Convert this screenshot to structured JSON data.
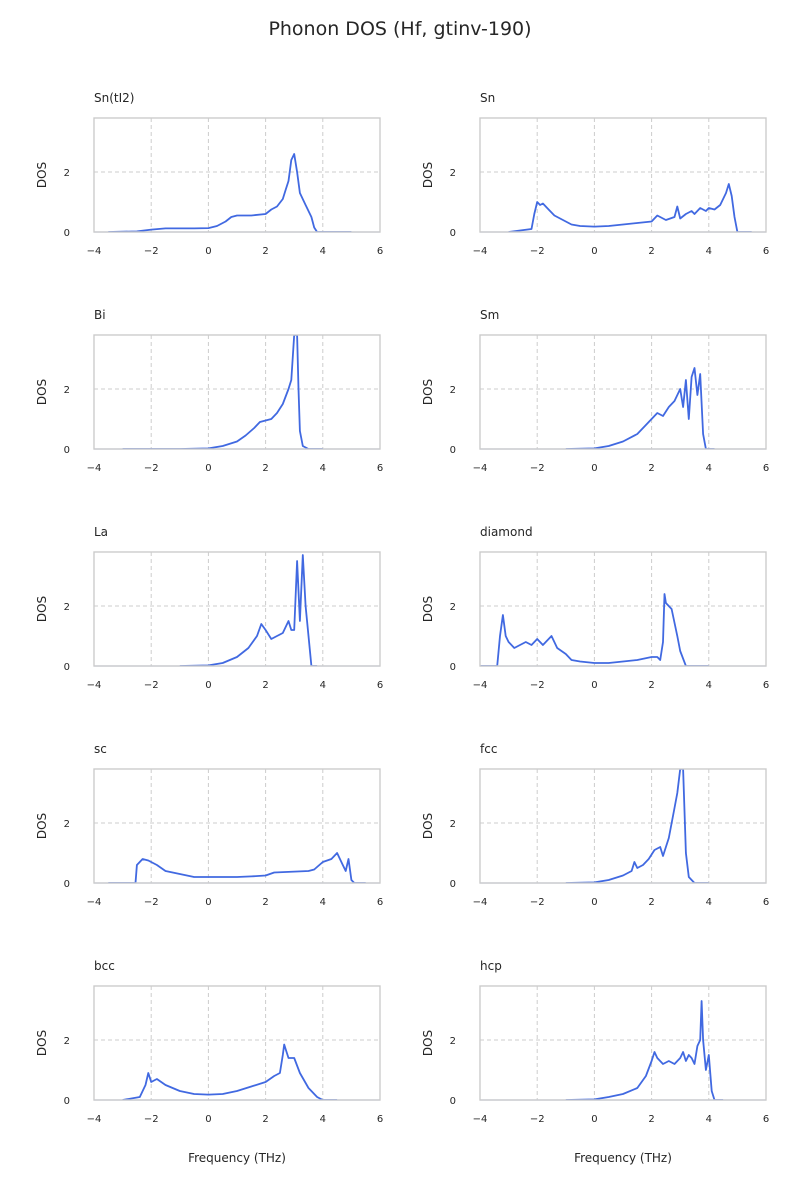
{
  "figure": {
    "title": "Phonon DOS (Hf, gtinv-190)"
  },
  "colors": {
    "line": "#4169e1",
    "grid": "#cccccc",
    "frame": "#cccccc",
    "text": "#262626"
  },
  "chart_data": [
    {
      "type": "line",
      "title": "Sn(tI2)",
      "xlabel": "",
      "ylabel": "DOS",
      "xlim": [
        -4,
        6
      ],
      "ylim": [
        0,
        3.8
      ],
      "xticks": [
        "−4",
        "−2",
        "0",
        "2",
        "4",
        "6"
      ],
      "yticks": [
        "0",
        "2"
      ],
      "x": [
        -3.5,
        -2.5,
        -2,
        -1.5,
        -1,
        -0.5,
        0,
        0.3,
        0.6,
        0.8,
        1,
        1.5,
        2,
        2.2,
        2.4,
        2.6,
        2.7,
        2.8,
        2.9,
        3,
        3.1,
        3.2,
        3.4,
        3.6,
        3.7,
        3.8,
        4,
        5
      ],
      "y": [
        0,
        0.02,
        0.08,
        0.12,
        0.12,
        0.12,
        0.13,
        0.2,
        0.35,
        0.5,
        0.55,
        0.55,
        0.6,
        0.75,
        0.85,
        1.1,
        1.4,
        1.7,
        2.4,
        2.6,
        2.0,
        1.3,
        0.9,
        0.5,
        0.15,
        0,
        0,
        0
      ]
    },
    {
      "type": "line",
      "title": "Sn",
      "xlabel": "",
      "ylabel": "DOS",
      "xlim": [
        -4,
        6
      ],
      "ylim": [
        0,
        3.8
      ],
      "xticks": [
        "−4",
        "−2",
        "0",
        "2",
        "4",
        "6"
      ],
      "yticks": [
        "0",
        "2"
      ],
      "x": [
        -3,
        -2.2,
        -2.1,
        -2,
        -1.9,
        -1.8,
        -1.6,
        -1.4,
        -1.2,
        -1,
        -0.8,
        -0.5,
        0,
        0.5,
        1,
        1.5,
        2,
        2.2,
        2.5,
        2.8,
        2.9,
        3,
        3.2,
        3.4,
        3.5,
        3.7,
        3.9,
        4,
        4.2,
        4.4,
        4.6,
        4.7,
        4.8,
        4.9,
        5,
        5.5
      ],
      "y": [
        0,
        0.1,
        0.6,
        1.0,
        0.9,
        0.95,
        0.75,
        0.55,
        0.45,
        0.35,
        0.25,
        0.2,
        0.18,
        0.2,
        0.25,
        0.3,
        0.35,
        0.55,
        0.4,
        0.5,
        0.85,
        0.45,
        0.6,
        0.7,
        0.6,
        0.8,
        0.7,
        0.8,
        0.75,
        0.9,
        1.3,
        1.6,
        1.2,
        0.5,
        0,
        0
      ]
    },
    {
      "type": "line",
      "title": "Bi",
      "xlabel": "",
      "ylabel": "DOS",
      "xlim": [
        -4,
        6
      ],
      "ylim": [
        0,
        3.8
      ],
      "xticks": [
        "−4",
        "−2",
        "0",
        "2",
        "4",
        "6"
      ],
      "yticks": [
        "0",
        "2"
      ],
      "x": [
        -3,
        -1,
        0,
        0.5,
        1,
        1.3,
        1.6,
        1.8,
        2,
        2.2,
        2.4,
        2.6,
        2.8,
        2.9,
        3,
        3.1,
        3.15,
        3.2,
        3.3,
        3.5,
        4
      ],
      "y": [
        0,
        0,
        0.02,
        0.1,
        0.25,
        0.45,
        0.7,
        0.9,
        0.95,
        1.0,
        1.2,
        1.5,
        2.0,
        2.3,
        3.8,
        3.8,
        2.0,
        0.6,
        0.1,
        0,
        0
      ]
    },
    {
      "type": "line",
      "title": "Sm",
      "xlabel": "",
      "ylabel": "DOS",
      "xlim": [
        -4,
        6
      ],
      "ylim": [
        0,
        3.8
      ],
      "xticks": [
        "−4",
        "−2",
        "0",
        "2",
        "4",
        "6"
      ],
      "yticks": [
        "0",
        "2"
      ],
      "x": [
        -1,
        0,
        0.5,
        1,
        1.5,
        1.8,
        2,
        2.2,
        2.4,
        2.6,
        2.8,
        3,
        3.1,
        3.2,
        3.3,
        3.4,
        3.5,
        3.6,
        3.7,
        3.8,
        3.9,
        4.2
      ],
      "y": [
        0,
        0.02,
        0.1,
        0.25,
        0.5,
        0.8,
        1.0,
        1.2,
        1.1,
        1.4,
        1.6,
        2.0,
        1.4,
        2.3,
        1.0,
        2.4,
        2.7,
        1.8,
        2.5,
        0.5,
        0,
        0
      ]
    },
    {
      "type": "line",
      "title": "La",
      "xlabel": "",
      "ylabel": "DOS",
      "xlim": [
        -4,
        6
      ],
      "ylim": [
        0,
        3.8
      ],
      "xticks": [
        "−4",
        "−2",
        "0",
        "2",
        "4",
        "6"
      ],
      "yticks": [
        "0",
        "2"
      ],
      "x": [
        -1,
        0,
        0.5,
        1,
        1.4,
        1.7,
        1.85,
        2,
        2.2,
        2.4,
        2.6,
        2.8,
        2.9,
        3,
        3.1,
        3.2,
        3.3,
        3.4,
        3.5,
        3.6,
        3.8
      ],
      "y": [
        0,
        0.02,
        0.1,
        0.3,
        0.6,
        1.0,
        1.4,
        1.2,
        0.9,
        1.0,
        1.1,
        1.5,
        1.2,
        1.2,
        3.5,
        1.5,
        3.7,
        2.0,
        1.0,
        0,
        0
      ]
    },
    {
      "type": "line",
      "title": "diamond",
      "xlabel": "",
      "ylabel": "DOS",
      "xlim": [
        -4,
        6
      ],
      "ylim": [
        0,
        3.8
      ],
      "xticks": [
        "−4",
        "−2",
        "0",
        "2",
        "4",
        "6"
      ],
      "yticks": [
        "0",
        "2"
      ],
      "x": [
        -4,
        -3.4,
        -3.3,
        -3.2,
        -3.1,
        -3,
        -2.8,
        -2.6,
        -2.4,
        -2.2,
        -2,
        -1.8,
        -1.5,
        -1.3,
        -1,
        -0.8,
        -0.5,
        0,
        0.5,
        1,
        1.5,
        2,
        2.2,
        2.3,
        2.4,
        2.45,
        2.5,
        2.7,
        2.9,
        3,
        3.2,
        4
      ],
      "y": [
        0,
        0,
        1.0,
        1.7,
        1.0,
        0.8,
        0.6,
        0.7,
        0.8,
        0.7,
        0.9,
        0.7,
        1.0,
        0.6,
        0.4,
        0.2,
        0.15,
        0.1,
        0.1,
        0.15,
        0.2,
        0.3,
        0.3,
        0.2,
        0.8,
        2.4,
        2.1,
        1.9,
        1.0,
        0.5,
        0,
        0
      ]
    },
    {
      "type": "line",
      "title": "sc",
      "xlabel": "",
      "ylabel": "DOS",
      "xlim": [
        -4,
        6
      ],
      "ylim": [
        0,
        3.8
      ],
      "xticks": [
        "−4",
        "−2",
        "0",
        "2",
        "4",
        "6"
      ],
      "yticks": [
        "0",
        "2"
      ],
      "x": [
        -3.5,
        -2.55,
        -2.5,
        -2.3,
        -2.1,
        -1.8,
        -1.5,
        -1,
        -0.5,
        0,
        0.5,
        1,
        1.5,
        2,
        2.3,
        3,
        3.5,
        3.7,
        4,
        4.3,
        4.5,
        4.7,
        4.8,
        4.9,
        5,
        5.1,
        5.5
      ],
      "y": [
        0,
        0,
        0.6,
        0.8,
        0.75,
        0.6,
        0.4,
        0.3,
        0.2,
        0.2,
        0.2,
        0.2,
        0.22,
        0.25,
        0.35,
        0.38,
        0.4,
        0.45,
        0.7,
        0.8,
        1.0,
        0.6,
        0.4,
        0.8,
        0.1,
        0,
        0
      ]
    },
    {
      "type": "line",
      "title": "fcc",
      "xlabel": "",
      "ylabel": "DOS",
      "xlim": [
        -4,
        6
      ],
      "ylim": [
        0,
        3.8
      ],
      "xticks": [
        "−4",
        "−2",
        "0",
        "2",
        "4",
        "6"
      ],
      "yticks": [
        "0",
        "2"
      ],
      "x": [
        -1,
        0,
        0.5,
        1,
        1.3,
        1.4,
        1.5,
        1.7,
        1.9,
        2.1,
        2.3,
        2.4,
        2.6,
        2.8,
        2.9,
        3,
        3.1,
        3.2,
        3.3,
        3.5,
        4
      ],
      "y": [
        0,
        0.02,
        0.1,
        0.25,
        0.4,
        0.7,
        0.5,
        0.6,
        0.8,
        1.1,
        1.2,
        0.9,
        1.5,
        2.5,
        3.0,
        3.8,
        3.8,
        1.0,
        0.2,
        0,
        0
      ]
    },
    {
      "type": "line",
      "title": "bcc",
      "xlabel": "",
      "ylabel": "DOS",
      "xlim": [
        -4,
        6
      ],
      "ylim": [
        0,
        3.8
      ],
      "xticks": [
        "−4",
        "−2",
        "0",
        "2",
        "4",
        "6"
      ],
      "yticks": [
        "0",
        "2"
      ],
      "x": [
        -3,
        -2.4,
        -2.2,
        -2.1,
        -2,
        -1.8,
        -1.5,
        -1,
        -0.5,
        0,
        0.5,
        1,
        1.5,
        2,
        2.3,
        2.5,
        2.6,
        2.65,
        2.7,
        2.8,
        3,
        3.2,
        3.5,
        3.8,
        4,
        4.5
      ],
      "y": [
        0,
        0.1,
        0.5,
        0.9,
        0.6,
        0.7,
        0.5,
        0.3,
        0.2,
        0.18,
        0.2,
        0.3,
        0.45,
        0.6,
        0.8,
        0.9,
        1.5,
        1.85,
        1.7,
        1.4,
        1.4,
        0.9,
        0.4,
        0.1,
        0,
        0
      ]
    },
    {
      "type": "line",
      "title": "hcp",
      "xlabel": "",
      "ylabel": "DOS",
      "xlim": [
        -4,
        6
      ],
      "ylim": [
        0,
        3.8
      ],
      "xticks": [
        "−4",
        "−2",
        "0",
        "2",
        "4",
        "6"
      ],
      "yticks": [
        "0",
        "2"
      ],
      "x": [
        -1,
        0,
        0.5,
        1,
        1.5,
        1.8,
        2,
        2.1,
        2.2,
        2.4,
        2.6,
        2.8,
        3,
        3.1,
        3.2,
        3.3,
        3.4,
        3.5,
        3.6,
        3.7,
        3.75,
        3.8,
        3.9,
        4,
        4.1,
        4.2,
        4.5
      ],
      "y": [
        0,
        0.02,
        0.1,
        0.2,
        0.4,
        0.8,
        1.3,
        1.6,
        1.4,
        1.2,
        1.3,
        1.2,
        1.4,
        1.6,
        1.3,
        1.5,
        1.4,
        1.2,
        1.8,
        2.0,
        3.3,
        2.0,
        1.0,
        1.5,
        0.3,
        0,
        0
      ]
    }
  ],
  "xaxis_label": "Frequency (THz)"
}
